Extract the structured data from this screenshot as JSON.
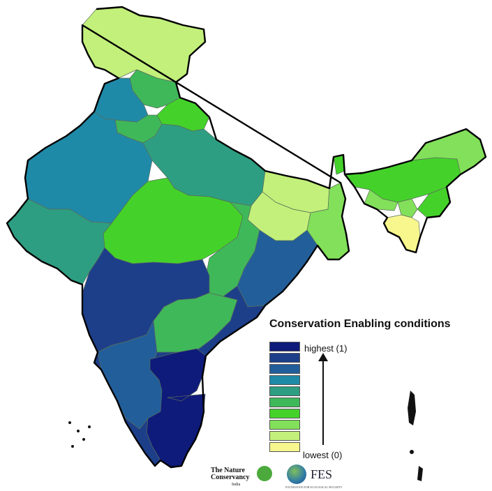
{
  "legend": {
    "title": "Conservation Enabling conditions",
    "high_label": "highest (1)",
    "low_label": "lowest (0)",
    "scale": [
      {
        "level": 1,
        "color": "#0e1b7a"
      },
      {
        "level": 2,
        "color": "#1d3f8a"
      },
      {
        "level": 3,
        "color": "#225f9a"
      },
      {
        "level": 4,
        "color": "#1f8aa8"
      },
      {
        "level": 5,
        "color": "#2e9e82"
      },
      {
        "level": 6,
        "color": "#3fb85a"
      },
      {
        "level": 7,
        "color": "#44d22a"
      },
      {
        "level": 8,
        "color": "#82e05a"
      },
      {
        "level": 9,
        "color": "#c2f07a"
      },
      {
        "level": 10,
        "color": "#f7f78e"
      }
    ]
  },
  "logos": {
    "tnc_line1": "The Nature",
    "tnc_line2": "Conservancy",
    "tnc_line3": "India",
    "fes_text": "FES",
    "fes_subtitle": "FOUNDATION FOR ECOLOGICAL SECURITY"
  },
  "colors": {
    "outline": "#000000",
    "region_border": "#5a6b5a"
  }
}
